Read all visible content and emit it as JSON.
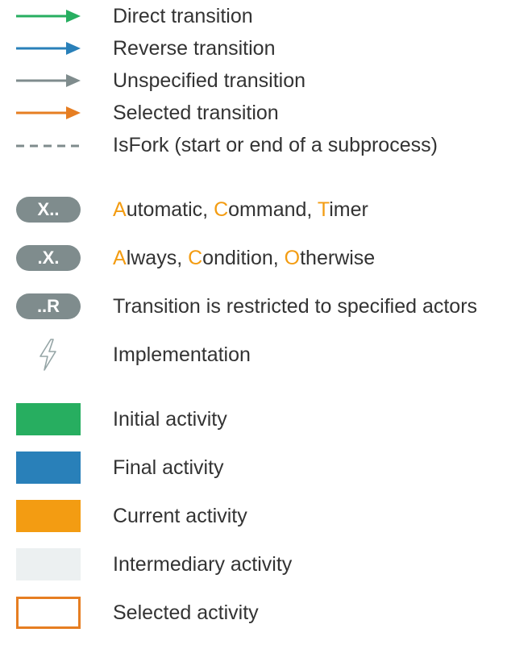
{
  "colors": {
    "direct": "#27ae60",
    "reverse": "#2980b9",
    "unspecified": "#7f8c8d",
    "selected": "#e67e22",
    "fork": "#7f8c8d",
    "initial": "#27ae60",
    "final": "#2980b9",
    "current": "#f39c12",
    "intermediary": "#ecf0f1",
    "selected_border": "#e67e22",
    "highlight": "#f39c12",
    "pill": "#7f8c8d"
  },
  "transitions": [
    {
      "icon": "arrow-icon",
      "label": "Direct transition"
    },
    {
      "icon": "arrow-icon",
      "label": "Reverse transition"
    },
    {
      "icon": "arrow-icon",
      "label": "Unspecified transition"
    },
    {
      "icon": "arrow-icon",
      "label": "Selected transition"
    },
    {
      "icon": "dashed-line-icon",
      "label": "IsFork (start or end of a subprocess)"
    }
  ],
  "badges": {
    "trigger": {
      "text": "X..",
      "words": [
        {
          "hl": "A",
          "rest": "utomatic"
        },
        {
          "hl": "C",
          "rest": "ommand"
        },
        {
          "hl": "T",
          "rest": "imer"
        }
      ],
      "sep": ", "
    },
    "condition": {
      "text": ".X.",
      "words": [
        {
          "hl": "A",
          "rest": "lways"
        },
        {
          "hl": "C",
          "rest": "ondition"
        },
        {
          "hl": "O",
          "rest": "therwise"
        }
      ],
      "sep": ", "
    },
    "restricted": {
      "text": "..R",
      "label": "Transition is restricted to specified actors"
    }
  },
  "implementation": {
    "icon": "lightning-icon",
    "label": "Implementation"
  },
  "activities": [
    {
      "label": "Initial activity"
    },
    {
      "label": "Final activity"
    },
    {
      "label": "Current activity"
    },
    {
      "label": "Intermediary activity"
    },
    {
      "label": "Selected activity"
    }
  ]
}
